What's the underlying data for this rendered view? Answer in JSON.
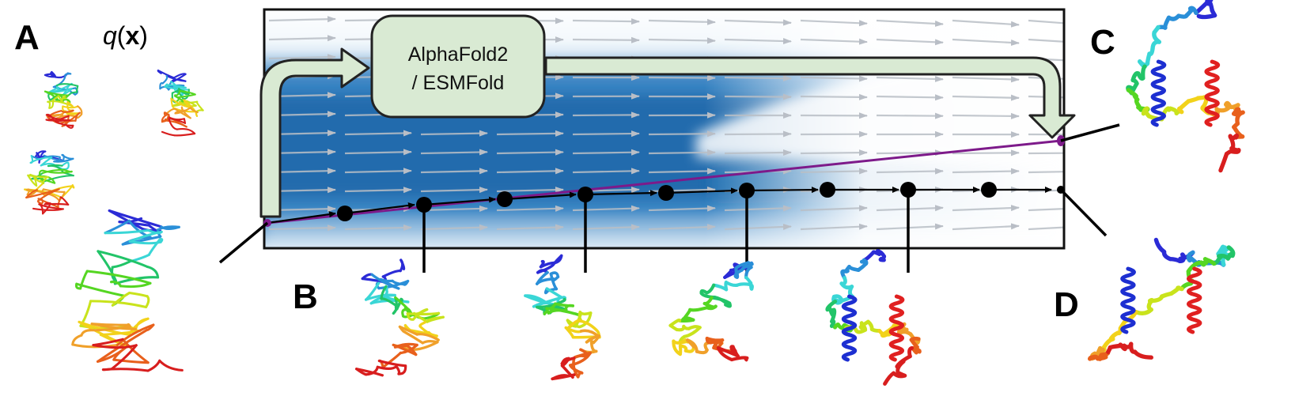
{
  "panels": {
    "a": "A",
    "b": "B",
    "c": "C",
    "d": "D"
  },
  "distribution_label": {
    "var": "q",
    "open": "(",
    "bold": "x",
    "close": ")"
  },
  "model_box": {
    "line1": "AlphaFold2",
    "line2": "/ ESMFold"
  },
  "colors": {
    "field_dark": "#1f6fb2",
    "field_light": "#eaf3fb",
    "arrow": "#c9cdd3",
    "trajectory": "#000000",
    "direct_path": "#7d1a8a",
    "model_fill": "#d9ead3",
    "model_stroke": "#222222"
  },
  "chain_colors": [
    "#2b2bd6",
    "#2a8fd8",
    "#3ad6d6",
    "#22c468",
    "#55d622",
    "#c9e31c",
    "#f2d21a",
    "#f0a02a",
    "#e8601c",
    "#d81e1e"
  ],
  "icons": {
    "protein": "protein-structure-icon",
    "arrow": "flow-arrow-icon"
  }
}
